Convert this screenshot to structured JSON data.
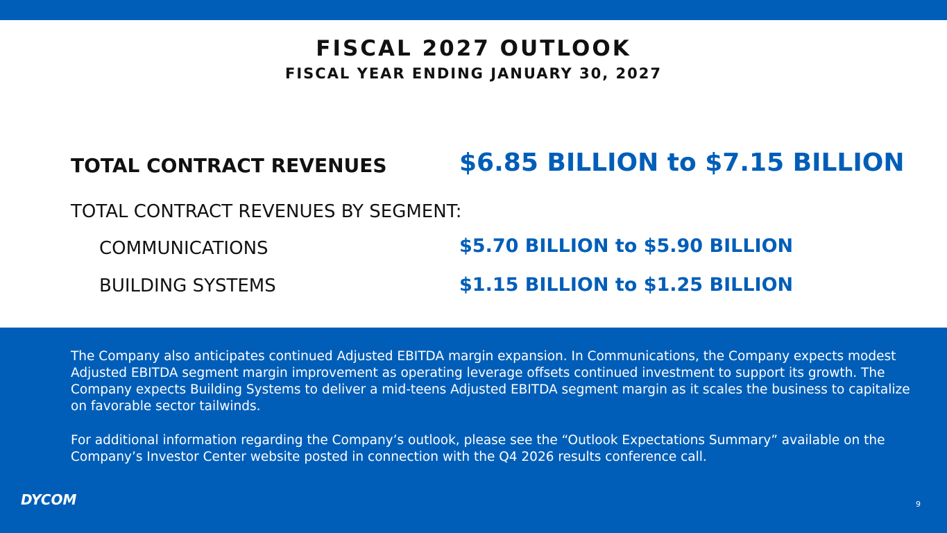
{
  "header": {
    "title": "FISCAL 2027 OUTLOOK",
    "subtitle": "FISCAL YEAR ENDING JANUARY 30, 2027"
  },
  "total": {
    "label": "TOTAL CONTRACT REVENUES",
    "value": "$6.85 BILLION to $7.15 BILLION"
  },
  "segments": {
    "heading": "TOTAL CONTRACT REVENUES BY SEGMENT:",
    "rows": [
      {
        "label": "COMMUNICATIONS",
        "value": "$5.70 BILLION to $5.90 BILLION"
      },
      {
        "label": "BUILDING SYSTEMS",
        "value": "$1.15 BILLION to $1.25 BILLION"
      }
    ]
  },
  "notes": [
    "The Company also anticipates continued Adjusted EBITDA margin expansion. In Communications, the Company expects modest Adjusted EBITDA segment margin improvement as operating leverage offsets continued investment to support its growth. The Company expects Building Systems to deliver a mid-teens Adjusted EBITDA segment margin as it scales the business to capitalize on favorable sector tailwinds.",
    "For additional information regarding the Company’s outlook, please see the “Outlook Expectations Summary” available on the Company’s Investor Center website posted in connection with the Q4 2026 results conference call."
  ],
  "footer": {
    "logo": "DYCOM",
    "page": "9"
  }
}
